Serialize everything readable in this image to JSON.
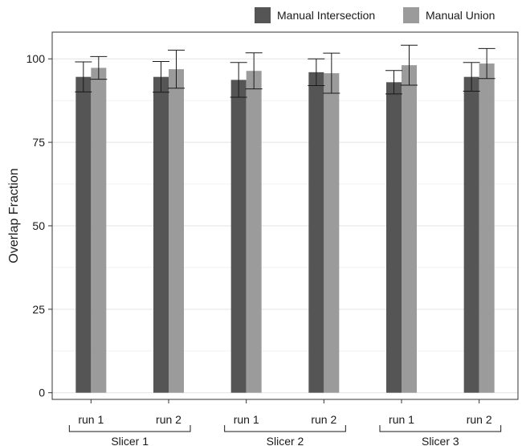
{
  "chart_data": {
    "type": "bar",
    "ylabel": "Overlap Fraction",
    "ylim": [
      -2,
      108
    ],
    "yticks": [
      0,
      25,
      50,
      75,
      100
    ],
    "grid": true,
    "legend_position": "top-right",
    "colors": {
      "Manual Intersection": "#555555",
      "Manual Union": "#9b9b9b"
    },
    "categories": [
      "run 1",
      "run 2",
      "run 1",
      "run 2",
      "run 1",
      "run 2"
    ],
    "groups": [
      {
        "label": "Slicer 1",
        "categories": [
          "run 1",
          "run 2"
        ]
      },
      {
        "label": "Slicer 2",
        "categories": [
          "run 1",
          "run 2"
        ]
      },
      {
        "label": "Slicer 3",
        "categories": [
          "run 1",
          "run 2"
        ]
      }
    ],
    "series": [
      {
        "name": "Manual Intersection",
        "values": [
          94.6,
          94.6,
          93.7,
          96.0,
          93.0,
          94.6
        ],
        "errors": [
          4.5,
          4.6,
          5.2,
          4.0,
          3.5,
          4.3
        ]
      },
      {
        "name": "Manual Union",
        "values": [
          97.3,
          96.9,
          96.4,
          95.7,
          98.1,
          98.6
        ],
        "errors": [
          3.4,
          5.7,
          5.4,
          6.0,
          6.0,
          4.5
        ]
      }
    ]
  }
}
